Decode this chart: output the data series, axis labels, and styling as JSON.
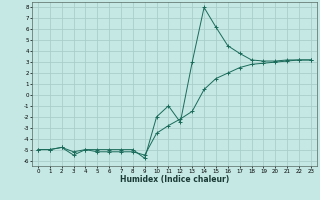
{
  "xlabel": "Humidex (Indice chaleur)",
  "background_color": "#c5e8e4",
  "grid_color": "#aacfcb",
  "line_color": "#1a6b5a",
  "xlim": [
    -0.5,
    23.5
  ],
  "ylim": [
    -6.5,
    8.5
  ],
  "xticks": [
    0,
    1,
    2,
    3,
    4,
    5,
    6,
    7,
    8,
    9,
    10,
    11,
    12,
    13,
    14,
    15,
    16,
    17,
    18,
    19,
    20,
    21,
    22,
    23
  ],
  "yticks": [
    -6,
    -5,
    -4,
    -3,
    -2,
    -1,
    0,
    1,
    2,
    3,
    4,
    5,
    6,
    7,
    8
  ],
  "line1_x": [
    0,
    1,
    2,
    3,
    4,
    5,
    6,
    7,
    8,
    9,
    10,
    11,
    12,
    13,
    14,
    15,
    16,
    17,
    18,
    19,
    20,
    21,
    22,
    23
  ],
  "line1_y": [
    -5,
    -5,
    -4.8,
    -5.2,
    -5,
    -5,
    -5,
    -5,
    -5,
    -5.8,
    -2,
    -1,
    -2.5,
    3,
    8,
    6.2,
    4.5,
    3.8,
    3.2,
    3.1,
    3.1,
    3.2,
    3.2,
    3.2
  ],
  "line2_x": [
    0,
    1,
    2,
    3,
    4,
    5,
    6,
    7,
    8,
    9,
    10,
    11,
    12,
    13,
    14,
    15,
    16,
    17,
    18,
    19,
    20,
    21,
    22,
    23
  ],
  "line2_y": [
    -5,
    -5,
    -4.8,
    -5.5,
    -5,
    -5.2,
    -5.2,
    -5.2,
    -5.2,
    -5.5,
    -3.5,
    -2.8,
    -2.2,
    -1.5,
    0.5,
    1.5,
    2.0,
    2.5,
    2.8,
    2.9,
    3.0,
    3.1,
    3.2,
    3.2
  ]
}
